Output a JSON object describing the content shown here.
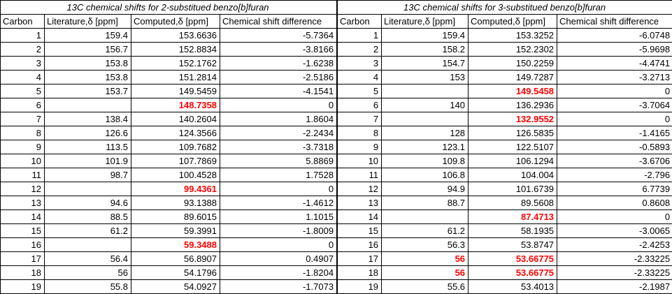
{
  "colors": {
    "highlight": "#ff0000",
    "grid": "#000000",
    "text": "#000000",
    "background": "#ffffff"
  },
  "tables": [
    {
      "title": "13C chemical shifts for 2-substitued benzo[b]furan",
      "headers": [
        "Carbon",
        "Literature,δ [ppm]",
        "Computed,δ [ppm]",
        "Chemical shift difference"
      ],
      "rows": [
        {
          "cells": [
            "1",
            "159.4",
            "153.6636",
            "-5.7364"
          ],
          "red": []
        },
        {
          "cells": [
            "2",
            "156.7",
            "152.8834",
            "-3.8166"
          ],
          "red": []
        },
        {
          "cells": [
            "3",
            "153.8",
            "152.1762",
            "-1.6238"
          ],
          "red": []
        },
        {
          "cells": [
            "4",
            "153.8",
            "151.2814",
            "-2.5186"
          ],
          "red": []
        },
        {
          "cells": [
            "5",
            "153.7",
            "149.5459",
            "-4.1541"
          ],
          "red": []
        },
        {
          "cells": [
            "6",
            "",
            "148.7358",
            "0"
          ],
          "red": [
            2
          ]
        },
        {
          "cells": [
            "7",
            "138.4",
            "140.2604",
            "1.8604"
          ],
          "red": []
        },
        {
          "cells": [
            "8",
            "126.6",
            "124.3566",
            "-2.2434"
          ],
          "red": []
        },
        {
          "cells": [
            "9",
            "113.5",
            "109.7682",
            "-3.7318"
          ],
          "red": []
        },
        {
          "cells": [
            "10",
            "101.9",
            "107.7869",
            "5.8869"
          ],
          "red": []
        },
        {
          "cells": [
            "11",
            "98.7",
            "100.4528",
            "1.7528"
          ],
          "red": []
        },
        {
          "cells": [
            "12",
            "",
            "99.4361",
            "0"
          ],
          "red": [
            2
          ]
        },
        {
          "cells": [
            "13",
            "94.6",
            "93.1388",
            "-1.4612"
          ],
          "red": []
        },
        {
          "cells": [
            "14",
            "88.5",
            "89.6015",
            "1.1015"
          ],
          "red": []
        },
        {
          "cells": [
            "15",
            "61.2",
            "59.3991",
            "-1.8009"
          ],
          "red": []
        },
        {
          "cells": [
            "16",
            "",
            "59.3488",
            "0"
          ],
          "red": [
            2
          ]
        },
        {
          "cells": [
            "17",
            "56.4",
            "56.8907",
            "0.4907"
          ],
          "red": []
        },
        {
          "cells": [
            "18",
            "56",
            "54.1796",
            "-1.8204"
          ],
          "red": []
        },
        {
          "cells": [
            "19",
            "55.8",
            "54.0927",
            "-1.7073"
          ],
          "red": []
        }
      ]
    },
    {
      "title": "13C chemical shifts for 3-substitued benzo[b]furan",
      "headers": [
        "Carbon",
        "Literature,δ [ppm]",
        "Computed,δ [ppm]",
        "Chemical shift difference"
      ],
      "rows": [
        {
          "cells": [
            "1",
            "159.4",
            "153.3252",
            "-6.0748"
          ],
          "red": []
        },
        {
          "cells": [
            "2",
            "158.2",
            "152.2302",
            "-5.9698"
          ],
          "red": []
        },
        {
          "cells": [
            "3",
            "154.7",
            "150.2259",
            "-4.4741"
          ],
          "red": []
        },
        {
          "cells": [
            "4",
            "153",
            "149.7287",
            "-3.2713"
          ],
          "red": []
        },
        {
          "cells": [
            "5",
            "",
            "149.5458",
            "0"
          ],
          "red": [
            2
          ]
        },
        {
          "cells": [
            "6",
            "140",
            "136.2936",
            "-3.7064"
          ],
          "red": []
        },
        {
          "cells": [
            "7",
            "",
            "132.9552",
            "0"
          ],
          "red": [
            2
          ]
        },
        {
          "cells": [
            "8",
            "128",
            "126.5835",
            "-1.4165"
          ],
          "red": []
        },
        {
          "cells": [
            "9",
            "123.1",
            "122.5107",
            "-0.5893"
          ],
          "red": []
        },
        {
          "cells": [
            "10",
            "109.8",
            "106.1294",
            "-3.6706"
          ],
          "red": []
        },
        {
          "cells": [
            "11",
            "106.8",
            "104.004",
            "-2.796"
          ],
          "red": []
        },
        {
          "cells": [
            "12",
            "94.9",
            "101.6739",
            "6.7739"
          ],
          "red": []
        },
        {
          "cells": [
            "13",
            "88.7",
            "89.5608",
            "0.8608"
          ],
          "red": []
        },
        {
          "cells": [
            "14",
            "",
            "87.4713",
            "0"
          ],
          "red": [
            2
          ]
        },
        {
          "cells": [
            "15",
            "61.2",
            "58.1935",
            "-3.0065"
          ],
          "red": []
        },
        {
          "cells": [
            "16",
            "56.3",
            "53.8747",
            "-2.4253"
          ],
          "red": []
        },
        {
          "cells": [
            "17",
            "56",
            "53.66775",
            "-2.33225"
          ],
          "red": [
            1,
            2
          ]
        },
        {
          "cells": [
            "18",
            "56",
            "53.66775",
            "-2.33225"
          ],
          "red": [
            1,
            2
          ]
        },
        {
          "cells": [
            "19",
            "55.6",
            "53.4013",
            "-2.1987"
          ],
          "red": []
        }
      ]
    }
  ]
}
